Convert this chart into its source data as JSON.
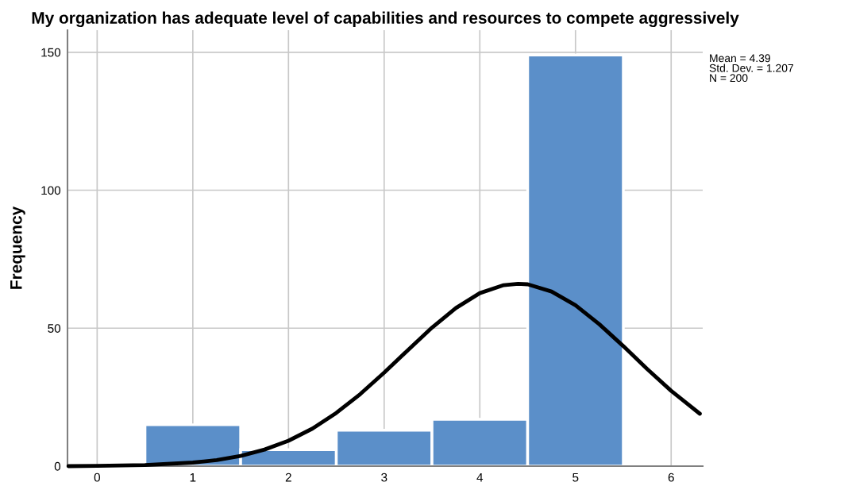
{
  "chart_data": {
    "type": "histogram",
    "title": "My organization has adequate level of capabilities and resources to compete aggressively",
    "ylabel": "Frequency",
    "bins": [
      0.5,
      1.5,
      2.5,
      3.5,
      4.5,
      5.5
    ],
    "values": [
      15,
      6,
      13,
      17,
      149
    ],
    "color": "#5b8fc9",
    "series": [
      {
        "type": "line",
        "color": "#000000",
        "x": [
          -0.3,
          0,
          0.5,
          1,
          1.25,
          1.5,
          1.75,
          2,
          2.25,
          2.5,
          2.75,
          3,
          3.25,
          3.5,
          3.75,
          4,
          4.25,
          4.4,
          4.5,
          4.75,
          5,
          5.25,
          5.5,
          5.75,
          6,
          6.3
        ],
        "values": [
          0,
          0.1,
          0.4,
          1.3,
          2.2,
          3.7,
          6,
          9.2,
          13.6,
          19.3,
          26.1,
          33.9,
          42.1,
          50.2,
          57.3,
          62.7,
          65.6,
          66.1,
          65.9,
          63.3,
          58.3,
          51.4,
          43.5,
          35.2,
          27.3,
          19
        ]
      }
    ],
    "xlim": [
      -0.31,
      6.33
    ],
    "ylim": [
      0,
      158
    ],
    "xticks": [
      0,
      1,
      2,
      3,
      4,
      5,
      6
    ],
    "yticks": [
      0,
      50,
      100,
      150
    ],
    "grid": true,
    "line_style": "solid",
    "annotations": [
      "Mean = 4.39\nStd. Dev. = 1.207\nN = 200"
    ]
  }
}
